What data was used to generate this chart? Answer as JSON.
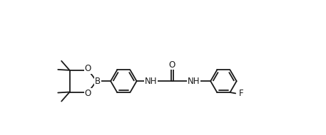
{
  "bg": "#ffffff",
  "lc": "#1a1a1a",
  "lw": 1.3,
  "fs": 8.5,
  "xlim": [
    -0.5,
    9.0
  ],
  "ylim": [
    -1.8,
    2.0
  ]
}
